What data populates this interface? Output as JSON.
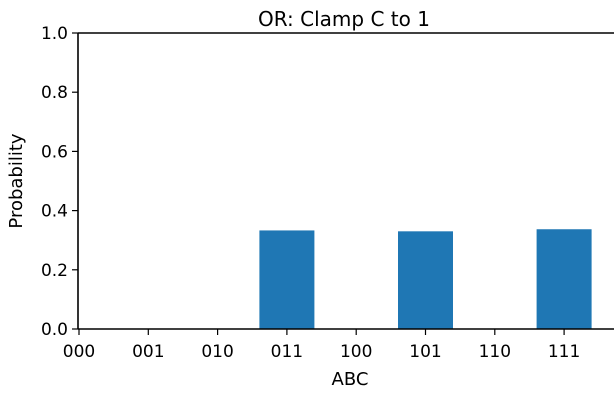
{
  "chart_data": {
    "type": "bar",
    "title": "OR: Clamp C to 1",
    "xlabel": "ABC",
    "ylabel": "Probability",
    "categories": [
      "000",
      "001",
      "010",
      "011",
      "100",
      "101",
      "110",
      "111"
    ],
    "values": [
      0,
      0,
      0,
      0.333,
      0,
      0.33,
      0,
      0.337
    ],
    "ylim": [
      0,
      1.0
    ],
    "yticks": [
      "0.0",
      "0.2",
      "0.4",
      "0.6",
      "0.8",
      "1.0"
    ],
    "grid": false,
    "bar_color": "#1f77b4"
  }
}
